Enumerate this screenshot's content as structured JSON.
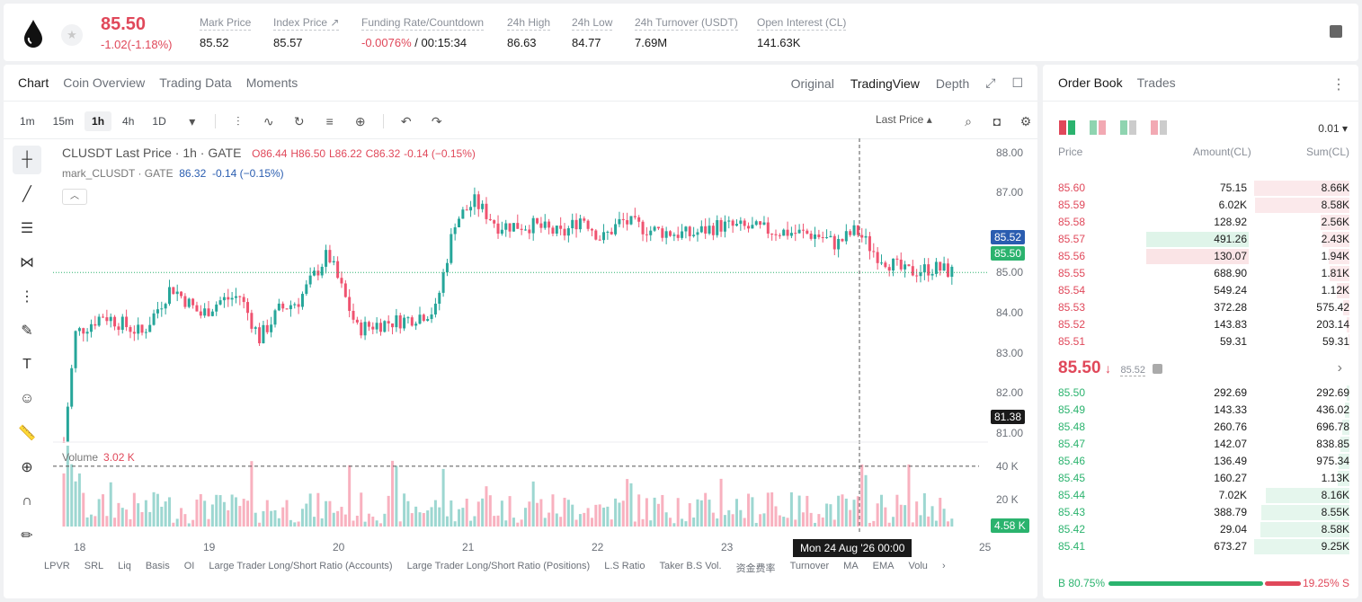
{
  "header": {
    "last_price": "85.50",
    "change": "-1.02(-1.18%)",
    "stats": [
      {
        "label": "Mark Price",
        "value": "85.52"
      },
      {
        "label": "Index Price ↗",
        "value": "85.57"
      },
      {
        "label": "Funding Rate/Countdown",
        "value_neg": "-0.0076%",
        "value": "/ 00:15:34"
      },
      {
        "label": "24h High",
        "value": "86.63"
      },
      {
        "label": "24h Low",
        "value": "84.77"
      },
      {
        "label": "24h Turnover (USDT)",
        "value": "7.69M"
      },
      {
        "label": "Open Interest (CL)",
        "value": "141.63K"
      }
    ]
  },
  "chart_tabs": [
    "Chart",
    "Coin Overview",
    "Trading Data",
    "Moments"
  ],
  "view_tabs": [
    "Original",
    "TradingView",
    "Depth"
  ],
  "timeframes": [
    "1m",
    "15m",
    "1h",
    "4h",
    "1D"
  ],
  "last_price_select": "Last Price",
  "legend": {
    "symbol": "CLUSDT Last Price · 1h · GATE",
    "o": "O86.44",
    "h": "H86.50",
    "l": "L86.22",
    "c": "C86.32",
    "chg": "-0.14 (−0.15%)",
    "mark": "mark_CLUSDT · GATE",
    "mark_val": "86.32",
    "mark_chg": "-0.14 (−0.15%)"
  },
  "volume": {
    "label": "Volume",
    "value": "3.02 K"
  },
  "price_axis": [
    "88.00",
    "87.00",
    "86.00",
    "85.00",
    "84.00",
    "83.00",
    "82.00",
    "81.00"
  ],
  "vol_axis": [
    "40 K",
    "20 K"
  ],
  "price_tags": {
    "mark": "85.52",
    "last": "85.50",
    "cross": "81.38",
    "vol": "4.58 K"
  },
  "date_axis": [
    "18",
    "19",
    "20",
    "21",
    "22",
    "23",
    "25"
  ],
  "crosshair_date": "Mon 24 Aug '26   00:00",
  "indicators": [
    "LPVR",
    "SRL",
    "Liq",
    "Basis",
    "OI",
    "Large Trader Long/Short Ratio (Accounts)",
    "Large Trader Long/Short Ratio (Positions)",
    "L.S Ratio",
    "Taker B.S Vol.",
    "资金费率",
    "Turnover",
    "MA",
    "EMA",
    "Volu"
  ],
  "orderbook": {
    "tabs": [
      "Order Book",
      "Trades"
    ],
    "step": "0.01",
    "headers": [
      "Price",
      "Amount(CL)",
      "Sum(CL)"
    ],
    "asks": [
      {
        "p": "85.60",
        "a": "75.15",
        "s": "8.66K",
        "w": 1.0
      },
      {
        "p": "85.59",
        "a": "6.02K",
        "s": "8.58K",
        "w": 0.99
      },
      {
        "p": "85.58",
        "a": "128.92",
        "s": "2.56K",
        "w": 0.3
      },
      {
        "p": "85.57",
        "a": "491.26",
        "s": "2.43K",
        "w": 0.28,
        "hl": "green"
      },
      {
        "p": "85.56",
        "a": "130.07",
        "s": "1.94K",
        "w": 0.22,
        "hl": "red"
      },
      {
        "p": "85.55",
        "a": "688.90",
        "s": "1.81K",
        "w": 0.21
      },
      {
        "p": "85.54",
        "a": "549.24",
        "s": "1.12K",
        "w": 0.13
      },
      {
        "p": "85.53",
        "a": "372.28",
        "s": "575.42",
        "w": 0.07
      },
      {
        "p": "85.52",
        "a": "143.83",
        "s": "203.14",
        "w": 0.03
      },
      {
        "p": "85.51",
        "a": "59.31",
        "s": "59.31",
        "w": 0.01
      }
    ],
    "mid_price": "85.50",
    "mid_arrow": "↓",
    "mid_mark": "85.52",
    "bids": [
      {
        "p": "85.50",
        "a": "292.69",
        "s": "292.69",
        "w": 0.03
      },
      {
        "p": "85.49",
        "a": "143.33",
        "s": "436.02",
        "w": 0.05
      },
      {
        "p": "85.48",
        "a": "260.76",
        "s": "696.78",
        "w": 0.08
      },
      {
        "p": "85.47",
        "a": "142.07",
        "s": "838.85",
        "w": 0.09
      },
      {
        "p": "85.46",
        "a": "136.49",
        "s": "975.34",
        "w": 0.11
      },
      {
        "p": "85.45",
        "a": "160.27",
        "s": "1.13K",
        "w": 0.12
      },
      {
        "p": "85.44",
        "a": "7.02K",
        "s": "8.16K",
        "w": 0.88
      },
      {
        "p": "85.43",
        "a": "388.79",
        "s": "8.55K",
        "w": 0.92
      },
      {
        "p": "85.42",
        "a": "29.04",
        "s": "8.58K",
        "w": 0.93
      },
      {
        "p": "85.41",
        "a": "673.27",
        "s": "9.25K",
        "w": 1.0
      }
    ],
    "buy_ratio": "B 80.75%",
    "sell_ratio": "19.25% S"
  },
  "colors": {
    "up": "#2bb36e",
    "down": "#e0485a",
    "candle_up": "#26a69a",
    "candle_down": "#ef5370"
  }
}
